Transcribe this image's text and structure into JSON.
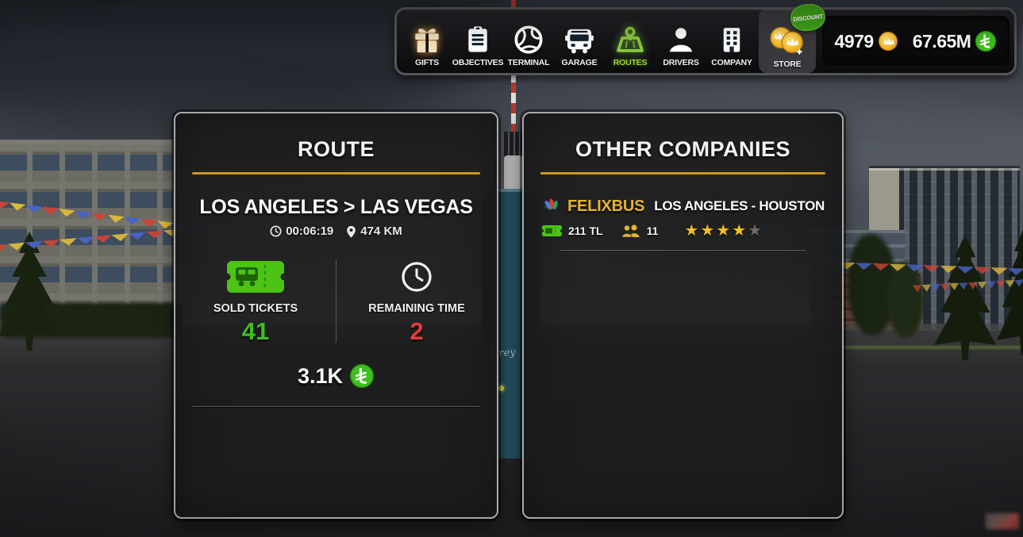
{
  "nav": {
    "items": [
      {
        "label": "GIFTS"
      },
      {
        "label": "OBJECTIVES"
      },
      {
        "label": "TERMINAL"
      },
      {
        "label": "GARAGE"
      },
      {
        "label": "ROUTES",
        "active": true
      },
      {
        "label": "DRIVERS"
      },
      {
        "label": "COMPANY"
      },
      {
        "label": "STORE",
        "badge": "DISCOUNT"
      }
    ],
    "gold_amount": "4979",
    "money_amount": "67.65M"
  },
  "route_panel": {
    "title": "ROUTE",
    "route_name": "LOS ANGELES > LAS VEGAS",
    "duration": "00:06:19",
    "distance": "474 KM",
    "sold_tickets": {
      "label": "SOLD TICKETS",
      "value": "41"
    },
    "remaining_time": {
      "label": "REMAINING TIME",
      "value": "2"
    },
    "earnings": "3.1K"
  },
  "other_companies": {
    "title": "OTHER COMPANIES",
    "companies": [
      {
        "name": "FELIXBUS",
        "route": "LOS ANGELES - HOUSTON",
        "ticket_price": "211 TL",
        "passenger_count": "11",
        "stars": 4,
        "stars_total": 5
      }
    ]
  },
  "background": {
    "bus_text": "Grey"
  },
  "colors": {
    "accent_gold": "#c9991e",
    "brand_gold": "#e7b42c",
    "positive_green": "#3fc021",
    "negative_red": "#e23c3c",
    "active_nav_green": "#8cc63e",
    "currency_green": "#3fbf1d",
    "coin_gold": "#f6bd2a"
  }
}
